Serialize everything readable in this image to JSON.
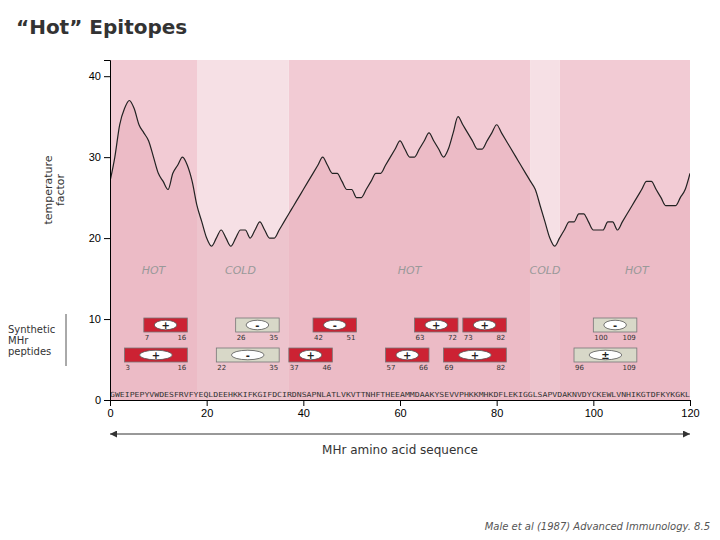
{
  "chart_data": {
    "type": "area",
    "title": "“Hot” Epitopes",
    "ylabel": "temperature\nfactor",
    "xlabel": "MHr amino acid sequence",
    "x": [
      0,
      1,
      2,
      3,
      4,
      5,
      6,
      7,
      8,
      9,
      10,
      11,
      12,
      13,
      14,
      15,
      16,
      17,
      18,
      19,
      20,
      21,
      22,
      23,
      24,
      25,
      26,
      27,
      28,
      29,
      30,
      31,
      32,
      33,
      34,
      35,
      36,
      37,
      38,
      39,
      40,
      41,
      42,
      43,
      44,
      45,
      46,
      47,
      48,
      49,
      50,
      51,
      52,
      53,
      54,
      55,
      56,
      57,
      58,
      59,
      60,
      61,
      62,
      63,
      64,
      65,
      66,
      67,
      68,
      69,
      70,
      71,
      72,
      73,
      74,
      75,
      76,
      77,
      78,
      79,
      80,
      81,
      82,
      83,
      84,
      85,
      86,
      87,
      88,
      89,
      90,
      91,
      92,
      93,
      94,
      95,
      96,
      97,
      98,
      99,
      100,
      101,
      102,
      103,
      104,
      105,
      106,
      107,
      108,
      109,
      110,
      111,
      112,
      113,
      114,
      115,
      116,
      117,
      118,
      119,
      120
    ],
    "values": [
      27,
      30,
      34,
      36,
      37,
      36,
      34,
      33,
      32,
      30,
      28,
      27,
      26,
      28,
      29,
      30,
      29,
      27,
      24,
      22,
      20,
      19,
      20,
      21,
      20,
      19,
      20,
      21,
      21,
      20,
      21,
      22,
      21,
      20,
      20,
      21,
      22,
      23,
      24,
      25,
      26,
      27,
      28,
      29,
      30,
      29,
      28,
      28,
      27,
      26,
      26,
      25,
      25,
      26,
      27,
      28,
      28,
      29,
      30,
      31,
      32,
      31,
      30,
      30,
      31,
      32,
      33,
      32,
      31,
      30,
      31,
      33,
      35,
      34,
      33,
      32,
      31,
      31,
      32,
      33,
      34,
      33,
      32,
      31,
      30,
      29,
      28,
      27,
      26,
      24,
      22,
      20,
      19,
      20,
      21,
      22,
      22,
      23,
      23,
      22,
      21,
      21,
      21,
      22,
      22,
      21,
      22,
      23,
      24,
      25,
      26,
      27,
      27,
      26,
      25,
      24,
      24,
      24,
      25,
      26,
      28
    ],
    "color": "#e8b0bc",
    "xlim": [
      0,
      120
    ],
    "ylim": [
      0,
      42
    ],
    "xticks": [
      0,
      20,
      40,
      60,
      80,
      100,
      120
    ],
    "yticks": [
      0,
      10,
      20,
      30,
      40
    ],
    "grid": false,
    "hot_regions": [
      [
        0,
        18
      ],
      [
        37,
        87
      ],
      [
        93,
        120
      ]
    ],
    "cold_regions": [
      [
        18,
        37
      ],
      [
        87,
        93
      ]
    ],
    "hot_color": "#e8a0b0",
    "cold_color": "#f5dde2",
    "annotations": [
      {
        "text": "HOT",
        "x": 9,
        "y": 16
      },
      {
        "text": "HOT",
        "x": 62,
        "y": 16
      },
      {
        "text": "HOT",
        "x": 109,
        "y": 16
      },
      {
        "text": "COLD",
        "x": 27,
        "y": 16
      },
      {
        "text": "COLD",
        "x": 90,
        "y": 16
      }
    ],
    "peptide_rows": [
      [
        {
          "start": 7,
          "end": 16,
          "sign": "+",
          "color": "#cc2233"
        },
        {
          "start": 26,
          "end": 35,
          "sign": "-",
          "color": "#d8d8c8"
        },
        {
          "start": 42,
          "end": 51,
          "sign": "-",
          "color": "#cc2233"
        },
        {
          "start": 63,
          "end": 72,
          "sign": "+",
          "color": "#cc2233"
        },
        {
          "start": 73,
          "end": 82,
          "sign": "+",
          "color": "#cc2233"
        },
        {
          "start": 100,
          "end": 109,
          "sign": "-",
          "color": "#d8d8c8"
        }
      ],
      [
        {
          "start": 3,
          "end": 16,
          "sign": "+",
          "color": "#cc2233"
        },
        {
          "start": 22,
          "end": 35,
          "sign": "-",
          "color": "#d8d8c8"
        },
        {
          "start": 37,
          "end": 46,
          "sign": "+",
          "color": "#cc2233"
        },
        {
          "start": 57,
          "end": 66,
          "sign": "+",
          "color": "#cc2233"
        },
        {
          "start": 69,
          "end": 82,
          "sign": "+",
          "color": "#cc2233"
        },
        {
          "start": 96,
          "end": 109,
          "sign": "±",
          "color": "#d8d8c8"
        }
      ]
    ],
    "peptides_label": "Synthetic\nMHr\npeptides",
    "sequence": "GWEIPEPYVWDESFRVFYEQLDEEHKKIFKGIFDCIRDNSAPNLATLVKVTTNHFTHEEAMMDAAKYSEVVPHKKMHKDFLEKIGGLSAPVDAKNVDYCKEWLVNHIKGTDFKYKGKL",
    "citation": "Male et al (1987) Advanced Immunology. 8.5"
  }
}
